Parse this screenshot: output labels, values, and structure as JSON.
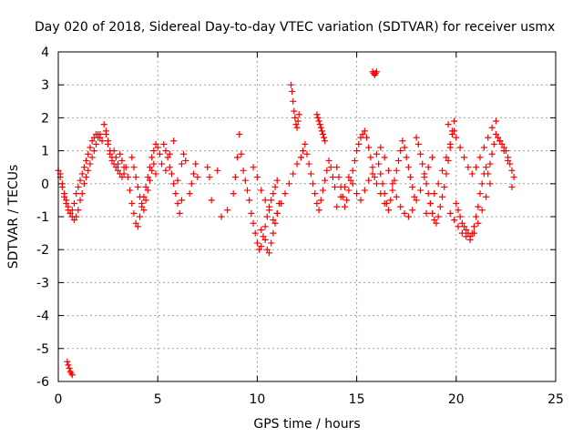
{
  "chart_data": {
    "type": "scatter",
    "title": "Day 020 of 2018, Sidereal Day-to-day VTEC variation (SDTVAR) for receiver usmx",
    "xlabel": "GPS time / hours",
    "ylabel": "SDTVAR / TECUs",
    "xlim": [
      0,
      25
    ],
    "ylim": [
      -6,
      4
    ],
    "xticks": [
      0,
      5,
      10,
      15,
      20,
      25
    ],
    "xtick_labels": [
      "0",
      "5",
      "10",
      "15",
      "20",
      "25"
    ],
    "yticks": [
      4,
      3,
      2,
      1,
      0,
      -1,
      -2,
      -3,
      -4,
      -5,
      -6
    ],
    "ytick_labels": [
      "4",
      "3",
      "2",
      "1",
      "0",
      "-1",
      "-2",
      "-3",
      "-4",
      "-5",
      "-6"
    ],
    "grid": true,
    "marker": "+",
    "series_color": "#ff0000",
    "series": [
      {
        "name": "SDTVAR",
        "x": [
          0.0,
          0.1,
          0.2,
          0.3,
          0.4,
          0.5,
          0.6,
          0.7,
          0.8,
          0.9,
          1.0,
          1.1,
          1.2,
          1.3,
          1.4,
          1.5,
          1.6,
          1.7,
          1.8,
          1.9,
          2.0,
          2.1,
          2.2,
          0.1,
          0.2,
          0.3,
          0.4,
          0.5,
          0.6,
          0.7,
          0.8,
          0.9,
          1.0,
          1.1,
          1.2,
          1.3,
          1.4,
          1.5,
          1.6,
          1.7,
          1.8,
          1.9,
          2.0,
          2.1,
          0.45,
          0.5,
          0.55,
          0.6,
          0.65,
          0.7,
          2.3,
          2.4,
          2.5,
          2.6,
          2.7,
          2.8,
          2.9,
          3.0,
          3.1,
          3.2,
          3.3,
          3.4,
          2.4,
          2.5,
          2.6,
          2.7,
          2.8,
          2.9,
          3.0,
          3.1,
          3.2,
          3.3,
          3.5,
          3.6,
          3.7,
          3.8,
          3.9,
          4.0,
          4.1,
          4.2,
          4.3,
          4.4,
          4.5,
          4.6,
          4.7,
          4.8,
          4.9,
          5.0,
          5.1,
          5.2,
          3.7,
          3.8,
          3.9,
          4.0,
          4.1,
          4.2,
          4.3,
          4.4,
          4.5,
          4.6,
          4.7,
          4.8,
          4.9,
          5.3,
          5.4,
          5.5,
          5.6,
          5.7,
          5.8,
          5.9,
          6.0,
          6.1,
          6.2,
          5.4,
          5.6,
          5.8,
          6.0,
          6.2,
          6.3,
          6.4,
          6.6,
          6.7,
          6.8,
          6.9,
          7.0,
          7.5,
          7.6,
          7.7,
          8.0,
          8.2,
          8.5,
          8.8,
          8.9,
          9.0,
          9.1,
          9.2,
          9.3,
          9.4,
          9.5,
          9.6,
          9.7,
          9.8,
          9.9,
          10.0,
          10.1,
          10.2,
          10.3,
          10.4,
          10.5,
          10.6,
          10.7,
          10.8,
          10.9,
          11.0,
          9.8,
          10.0,
          10.2,
          10.4,
          10.6,
          10.8,
          11.0,
          11.2,
          11.4,
          11.6,
          11.8,
          12.0,
          12.2,
          10.2,
          10.4,
          10.5,
          10.6,
          10.7,
          10.8,
          10.9,
          11.0,
          11.1,
          11.7,
          11.75,
          11.8,
          11.85,
          11.9,
          11.95,
          12.0,
          12.05,
          12.1,
          12.2,
          12.3,
          12.4,
          12.5,
          12.6,
          12.7,
          12.8,
          12.9,
          13.0,
          13.1,
          13.2,
          13.3,
          13.4,
          13.5,
          13.6,
          13.7,
          13.8,
          13.9,
          13.0,
          13.05,
          13.1,
          13.15,
          13.2,
          13.25,
          13.3,
          13.35,
          13.4,
          14.0,
          14.1,
          14.2,
          14.3,
          14.4,
          14.5,
          14.6,
          14.7,
          14.8,
          14.9,
          15.0,
          15.1,
          15.2,
          15.3,
          15.4,
          15.5,
          15.6,
          15.7,
          15.8,
          15.9,
          14.0,
          14.2,
          14.4,
          14.6,
          14.8,
          15.0,
          15.2,
          15.4,
          15.6,
          15.8,
          16.0,
          16.2,
          16.4,
          15.8,
          15.85,
          15.9,
          15.95,
          16.0,
          16.0,
          16.1,
          16.2,
          16.3,
          16.4,
          16.5,
          16.6,
          16.7,
          16.8,
          16.9,
          17.0,
          17.1,
          17.2,
          17.3,
          17.4,
          17.5,
          17.6,
          17.7,
          17.8,
          17.9,
          16.2,
          16.4,
          16.6,
          16.8,
          17.0,
          17.2,
          17.4,
          17.6,
          17.8,
          18.0,
          18.2,
          18.4,
          18.6,
          18.8,
          18.0,
          18.1,
          18.2,
          18.3,
          18.4,
          18.5,
          18.6,
          18.7,
          18.8,
          18.9,
          19.0,
          19.1,
          19.2,
          19.3,
          19.4,
          19.5,
          19.6,
          19.7,
          19.8,
          19.9,
          18.5,
          18.7,
          18.9,
          19.1,
          19.3,
          19.5,
          19.7,
          19.9,
          19.6,
          19.8,
          20.0,
          20.2,
          20.4,
          20.6,
          20.8,
          21.0,
          21.2,
          21.4,
          21.6,
          21.8,
          22.0,
          20.0,
          20.1,
          20.2,
          20.3,
          20.4,
          20.5,
          20.6,
          20.7,
          20.8,
          20.9,
          21.0,
          21.1,
          21.2,
          21.3,
          21.4,
          21.5,
          21.6,
          21.7,
          21.8,
          21.9,
          19.7,
          19.9,
          20.1,
          20.3,
          20.5,
          20.7,
          20.9,
          21.1,
          21.3,
          21.5,
          21.7,
          22.0,
          22.1,
          22.2,
          22.3,
          22.4,
          22.5,
          22.6,
          22.7,
          22.8,
          22.9,
          22.2,
          22.4,
          22.6,
          22.8
        ],
        "y": [
          0.4,
          0.2,
          -0.1,
          -0.4,
          -0.6,
          -0.8,
          -0.9,
          -0.8,
          -0.6,
          -0.3,
          -0.1,
          0.1,
          0.3,
          0.5,
          0.7,
          0.9,
          1.1,
          1.3,
          1.4,
          1.5,
          1.5,
          1.4,
          1.3,
          0.3,
          0.0,
          -0.3,
          -0.5,
          -0.7,
          -0.9,
          -1.0,
          -1.1,
          -1.0,
          -0.8,
          -0.5,
          -0.3,
          0.0,
          0.2,
          0.4,
          0.6,
          0.8,
          1.0,
          1.2,
          1.4,
          1.5,
          -5.4,
          -5.5,
          -5.6,
          -5.7,
          -5.75,
          -5.8,
          1.8,
          1.6,
          1.3,
          1.0,
          0.8,
          0.6,
          0.5,
          0.4,
          0.3,
          0.2,
          0.3,
          0.5,
          1.5,
          1.2,
          0.9,
          0.7,
          1.0,
          0.8,
          0.6,
          0.9,
          0.7,
          0.5,
          0.2,
          -0.2,
          -0.6,
          -0.9,
          -1.2,
          -1.3,
          -1.0,
          -0.7,
          -0.4,
          -0.1,
          0.2,
          0.5,
          0.8,
          1.0,
          1.2,
          1.1,
          0.9,
          0.6,
          0.8,
          0.5,
          0.2,
          -0.1,
          -0.4,
          -0.6,
          -0.8,
          -0.5,
          -0.2,
          0.1,
          0.4,
          0.6,
          0.3,
          1.2,
          1.0,
          0.8,
          0.5,
          0.3,
          0.0,
          -0.3,
          -0.6,
          -0.9,
          -0.5,
          0.4,
          0.9,
          1.3,
          0.1,
          0.6,
          0.9,
          0.7,
          -0.3,
          0.0,
          0.3,
          0.6,
          0.2,
          0.5,
          0.2,
          -0.5,
          0.4,
          -1.0,
          -0.8,
          -0.3,
          0.2,
          0.8,
          1.5,
          0.9,
          0.4,
          0.1,
          -0.2,
          -0.5,
          -0.9,
          -1.2,
          -1.5,
          -1.8,
          -2.0,
          -1.9,
          -1.6,
          -1.3,
          -1.0,
          -0.7,
          -0.5,
          -0.3,
          -0.1,
          0.1,
          0.5,
          0.2,
          -0.2,
          -0.5,
          -0.8,
          -1.1,
          -0.9,
          -0.6,
          -0.3,
          0.0,
          0.3,
          0.6,
          0.8,
          -1.4,
          -1.7,
          -2.0,
          -2.1,
          -1.8,
          -1.5,
          -1.2,
          -0.9,
          -0.6,
          3.0,
          2.8,
          2.5,
          2.2,
          2.0,
          1.8,
          1.7,
          1.9,
          2.1,
          0.8,
          1.0,
          1.2,
          0.9,
          0.6,
          0.3,
          0.0,
          -0.3,
          -0.6,
          -0.8,
          -0.5,
          -0.2,
          0.1,
          0.4,
          0.7,
          0.5,
          0.2,
          -0.1,
          2.1,
          2.0,
          1.9,
          1.8,
          1.7,
          1.6,
          1.5,
          1.4,
          1.3,
          0.5,
          0.2,
          -0.1,
          -0.4,
          -0.7,
          -0.5,
          -0.2,
          0.1,
          0.4,
          0.7,
          1.0,
          1.2,
          1.4,
          1.5,
          1.6,
          1.4,
          1.1,
          0.8,
          0.5,
          0.2,
          -0.7,
          -0.4,
          -0.1,
          0.2,
          0.0,
          -0.3,
          -0.5,
          -0.2,
          0.1,
          0.3,
          0.0,
          -0.3,
          -0.6,
          3.4,
          3.35,
          3.3,
          3.35,
          3.4,
          0.9,
          0.6,
          0.3,
          0.0,
          -0.3,
          -0.6,
          -0.8,
          -0.5,
          -0.2,
          0.1,
          0.4,
          0.7,
          1.0,
          1.3,
          1.1,
          0.8,
          0.5,
          0.2,
          -0.1,
          -0.4,
          1.1,
          0.8,
          0.4,
          0.0,
          -0.4,
          -0.7,
          -0.9,
          -1.0,
          -0.8,
          -0.5,
          -0.2,
          0.2,
          0.5,
          0.8,
          1.4,
          1.2,
          0.9,
          0.6,
          0.3,
          0.0,
          -0.3,
          -0.6,
          -0.9,
          -1.1,
          -1.2,
          -1.0,
          -0.7,
          -0.4,
          -0.1,
          0.3,
          0.7,
          1.1,
          1.5,
          1.9,
          -0.9,
          -0.6,
          -0.3,
          0.0,
          0.4,
          0.8,
          1.2,
          1.6,
          1.8,
          1.6,
          1.4,
          1.1,
          0.8,
          0.5,
          0.3,
          0.5,
          0.8,
          1.1,
          1.4,
          1.7,
          1.9,
          -0.6,
          -0.8,
          -1.0,
          -1.2,
          -1.3,
          -1.4,
          -1.5,
          -1.6,
          -1.5,
          -1.3,
          -1.0,
          -0.7,
          -0.3,
          0.0,
          0.3,
          0.5,
          0.3,
          0.6,
          0.9,
          1.2,
          -0.9,
          -1.1,
          -1.3,
          -1.5,
          -1.6,
          -1.7,
          -1.5,
          -1.2,
          -0.8,
          -0.4,
          0.0,
          1.5,
          1.4,
          1.3,
          1.2,
          1.1,
          1.0,
          0.8,
          0.6,
          0.4,
          0.2,
          1.3,
          1.0,
          0.7,
          -0.1
        ]
      }
    ]
  }
}
